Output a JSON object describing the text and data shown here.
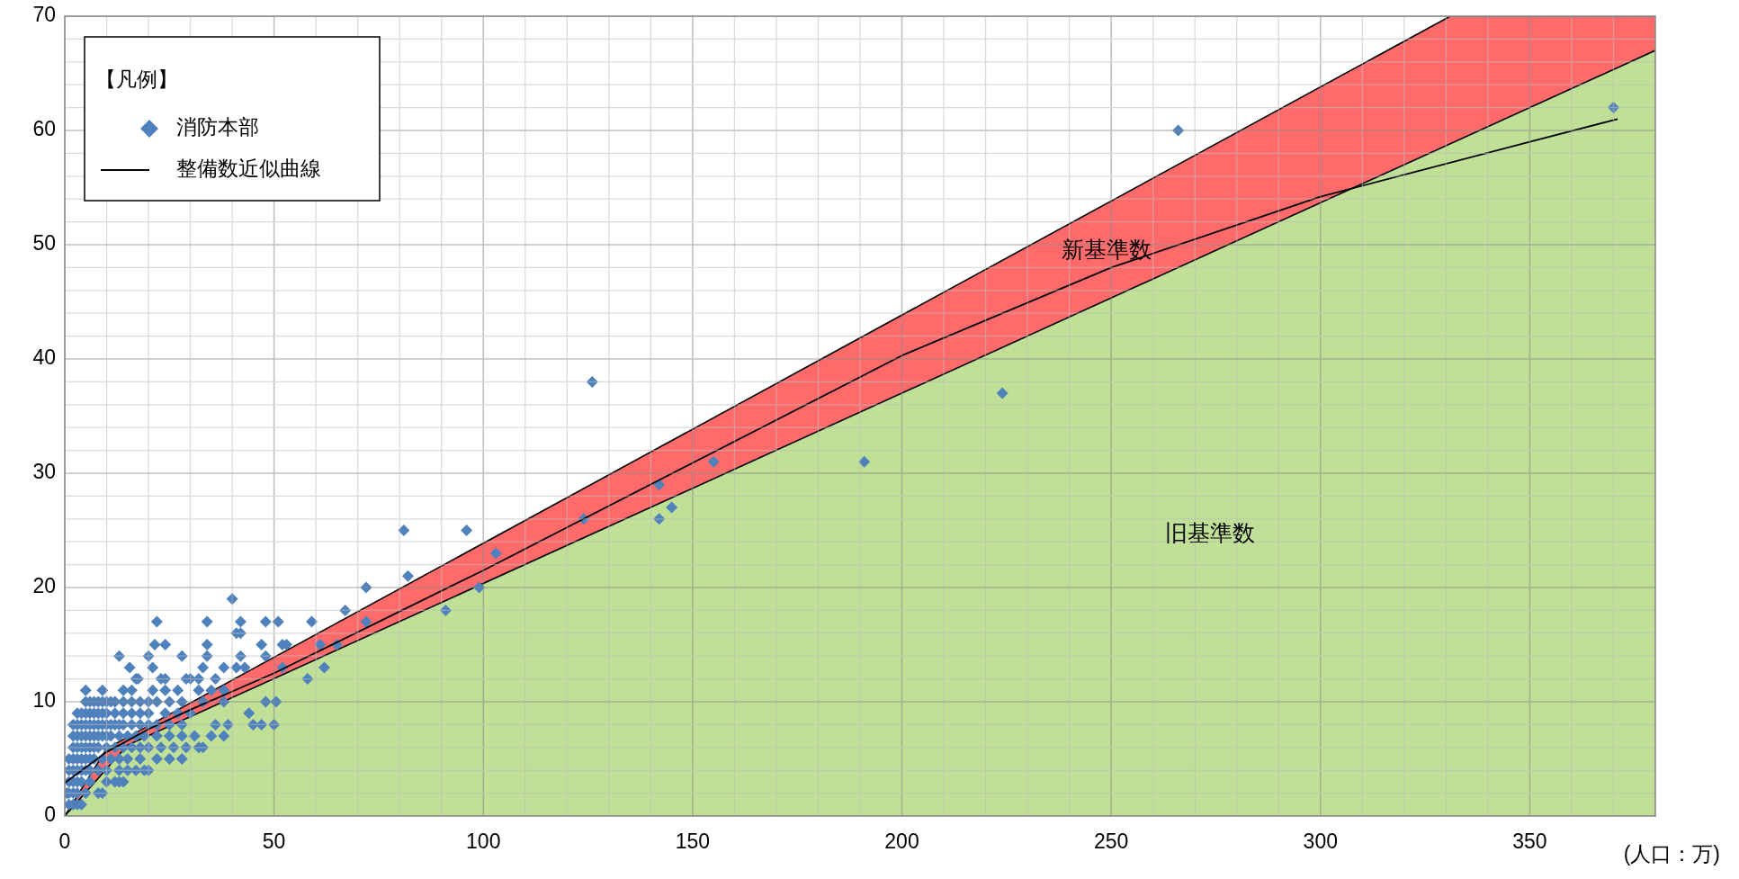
{
  "chart_data": {
    "type": "scatter",
    "xlabel": "(人口：万)",
    "legend_title": "【凡例】",
    "legend": "top left",
    "grid": true,
    "xlim": [
      0,
      380
    ],
    "ylim": [
      0,
      70
    ],
    "xticks": [
      0,
      {
        "value": 10,
        "label": null
      },
      {
        "value": 20,
        "label": null
      },
      {
        "value": 30,
        "label": null
      },
      {
        "value": 40,
        "label": null
      },
      50,
      {
        "value": 60,
        "label": null
      },
      {
        "value": 70,
        "label": null
      },
      {
        "value": 80,
        "label": null
      },
      {
        "value": 90,
        "label": null
      },
      100,
      {
        "value": 110,
        "label": null
      },
      {
        "value": 120,
        "label": null
      },
      {
        "value": 130,
        "label": null
      },
      {
        "value": 140,
        "label": null
      },
      150,
      {
        "value": 160,
        "label": null
      },
      {
        "value": 170,
        "label": null
      },
      {
        "value": 180,
        "label": null
      },
      {
        "value": 190,
        "label": null
      },
      200,
      {
        "value": 210,
        "label": null
      },
      {
        "value": 220,
        "label": null
      },
      {
        "value": 230,
        "label": null
      },
      {
        "value": 240,
        "label": null
      },
      250,
      {
        "value": 260,
        "label": null
      },
      {
        "value": 270,
        "label": null
      },
      {
        "value": 280,
        "label": null
      },
      {
        "value": 290,
        "label": null
      },
      300,
      {
        "value": 310,
        "label": null
      },
      {
        "value": 320,
        "label": null
      },
      {
        "value": 330,
        "label": null
      },
      {
        "value": 340,
        "label": null
      },
      350,
      {
        "value": 360,
        "label": null
      },
      {
        "value": 370,
        "label": null
      }
    ],
    "yticks": [
      0,
      {
        "value": 2,
        "label": null
      },
      {
        "value": 4,
        "label": null
      },
      {
        "value": 6,
        "label": null
      },
      {
        "value": 8,
        "label": null
      },
      10,
      {
        "value": 12,
        "label": null
      },
      {
        "value": 14,
        "label": null
      },
      {
        "value": 16,
        "label": null
      },
      {
        "value": 18,
        "label": null
      },
      20,
      {
        "value": 22,
        "label": null
      },
      {
        "value": 24,
        "label": null
      },
      {
        "value": 26,
        "label": null
      },
      {
        "value": 28,
        "label": null
      },
      30,
      {
        "value": 32,
        "label": null
      },
      {
        "value": 34,
        "label": null
      },
      {
        "value": 36,
        "label": null
      },
      {
        "value": 38,
        "label": null
      },
      40,
      {
        "value": 42,
        "label": null
      },
      {
        "value": 44,
        "label": null
      },
      {
        "value": 46,
        "label": null
      },
      {
        "value": 48,
        "label": null
      },
      50,
      {
        "value": 52,
        "label": null
      },
      {
        "value": 54,
        "label": null
      },
      {
        "value": 56,
        "label": null
      },
      {
        "value": 58,
        "label": null
      },
      60,
      {
        "value": 62,
        "label": null
      },
      {
        "value": 64,
        "label": null
      },
      {
        "value": 66,
        "label": null
      },
      {
        "value": 68,
        "label": null
      },
      70
    ],
    "series": [
      {
        "type": "area",
        "name": "新基準数",
        "color": "#ff6b6b",
        "x": [
          0,
          10,
          15,
          331,
          380
        ],
        "values": [
          0,
          5.9,
          6.9,
          70,
          70
        ]
      },
      {
        "type": "area",
        "name": "旧基準数",
        "color": "#bfe096",
        "x": [
          0,
          15,
          380
        ],
        "values": [
          0,
          6.2,
          67
        ]
      },
      {
        "type": "scatter",
        "name": "消防本部",
        "color": "#4f81bd",
        "marker": "diamond",
        "x": [
          1,
          2,
          3,
          4,
          0.5,
          1,
          2,
          3,
          5,
          8,
          9,
          1,
          2,
          3,
          4,
          6,
          10,
          12,
          13,
          14,
          1,
          2,
          3,
          4,
          5,
          6,
          8,
          10,
          13,
          15,
          17,
          19,
          20,
          1,
          2,
          3,
          4,
          5,
          6,
          7,
          9,
          11,
          13,
          15,
          18,
          22,
          25,
          28,
          2,
          3,
          4,
          5,
          6,
          7,
          8,
          10,
          12,
          14,
          16,
          18,
          20,
          23,
          26,
          29,
          32,
          33,
          2,
          3,
          4,
          5,
          6,
          7,
          8,
          9,
          10,
          11,
          13,
          15,
          17,
          19,
          22,
          25,
          28,
          31,
          35,
          38,
          2,
          3,
          4,
          5,
          6,
          7,
          8,
          9,
          10,
          11,
          12,
          13,
          14,
          16,
          18,
          20,
          22,
          25,
          28,
          36,
          39,
          45,
          47,
          50,
          3,
          4,
          5,
          6,
          7,
          8,
          9,
          10,
          12,
          14,
          16,
          18,
          20,
          24,
          27,
          30,
          44,
          5,
          6,
          7,
          8,
          9,
          10,
          11,
          12,
          14,
          16,
          18,
          20,
          22,
          25,
          28,
          33,
          38,
          48,
          50.5,
          5,
          9,
          14,
          16,
          21,
          24,
          27,
          32,
          35,
          38,
          17,
          17.5,
          23,
          24,
          29,
          30,
          32,
          36,
          58,
          15.5,
          21,
          33,
          38,
          41,
          43,
          52,
          62,
          13,
          20,
          28,
          34,
          42,
          48,
          21.5,
          24,
          34,
          47,
          52,
          53,
          61,
          65,
          41,
          42,
          22,
          34,
          42,
          48,
          51,
          59,
          72,
          67,
          91,
          40,
          72,
          99,
          82,
          103,
          81,
          96,
          124,
          142,
          145,
          142,
          155,
          191,
          224,
          126,
          266,
          370
        ],
        "values": [
          1,
          1,
          1,
          1,
          2,
          2,
          2,
          2,
          2,
          2,
          2,
          3,
          3,
          3,
          3,
          3,
          3,
          3,
          3,
          3,
          4,
          4,
          4,
          4,
          4,
          4,
          4,
          4,
          4,
          4,
          4,
          4,
          4,
          5,
          5,
          5,
          5,
          5,
          5,
          5,
          5,
          5,
          5,
          5,
          5,
          5,
          5,
          5,
          6,
          6,
          6,
          6,
          6,
          6,
          6,
          6,
          6,
          6,
          6,
          6,
          6,
          6,
          6,
          6,
          6,
          6,
          7,
          7,
          7,
          7,
          7,
          7,
          7,
          7,
          7,
          7,
          7,
          7,
          7,
          7,
          7,
          7,
          7,
          7,
          7,
          7,
          8,
          8,
          8,
          8,
          8,
          8,
          8,
          8,
          8,
          8,
          8,
          8,
          8,
          8,
          8,
          8,
          8,
          8,
          8,
          8,
          8,
          8,
          8,
          8,
          9,
          9,
          9,
          9,
          9,
          9,
          9,
          9,
          9,
          9,
          9,
          9,
          9,
          9,
          9,
          9,
          9,
          10,
          10,
          10,
          10,
          10,
          10,
          10,
          10,
          10,
          10,
          10,
          10,
          10,
          10,
          10,
          10,
          10,
          10,
          10,
          11,
          11,
          11,
          11,
          11,
          11,
          11,
          11,
          11,
          11,
          12,
          12,
          12,
          12,
          12,
          12,
          12,
          12,
          12,
          13,
          13,
          13,
          13,
          13,
          13,
          13,
          13,
          14,
          14,
          14,
          14,
          14,
          14,
          15,
          15,
          15,
          15,
          15,
          15,
          15,
          15,
          16,
          16,
          17,
          17,
          17,
          17,
          17,
          17,
          17,
          18,
          18,
          19,
          20,
          20,
          21,
          23,
          25,
          25,
          26,
          26,
          27,
          29,
          31,
          31,
          37,
          38,
          60,
          62
        ]
      },
      {
        "type": "line",
        "name": "整備数近似曲線",
        "color": "#000000",
        "x": [
          0,
          10,
          20,
          30,
          50,
          75,
          100,
          150,
          200,
          250,
          300,
          350,
          371
        ],
        "values": [
          2.9,
          5.6,
          7.6,
          9.3,
          12.5,
          17,
          21.5,
          30.9,
          40.3,
          48,
          54.2,
          59,
          61
        ]
      }
    ]
  }
}
